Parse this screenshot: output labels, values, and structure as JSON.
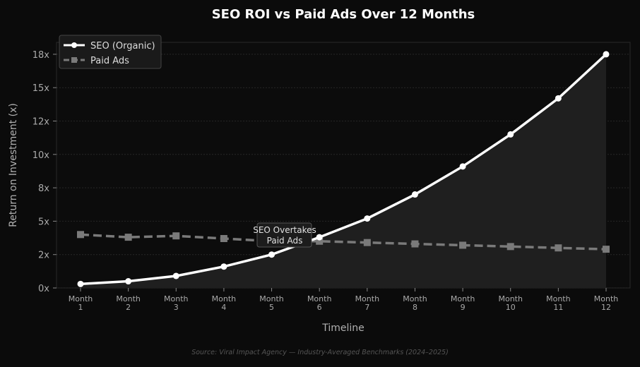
{
  "chart_data": {
    "type": "line",
    "title": "SEO ROI vs Paid Ads Over 12 Months",
    "xlabel": "Timeline",
    "ylabel": "Return on Investment (x)",
    "categories": [
      "Month\n1",
      "Month\n2",
      "Month\n3",
      "Month\n4",
      "Month\n5",
      "Month\n6",
      "Month\n7",
      "Month\n8",
      "Month\n9",
      "Month\n10",
      "Month\n11",
      "Month\n12"
    ],
    "ylim": [
      0,
      18.5
    ],
    "yticks": [
      0,
      2.5,
      5,
      7.5,
      10,
      12.5,
      15,
      17.5
    ],
    "ytick_labels": [
      "0x",
      "2x",
      "5x",
      "8x",
      "10x",
      "12x",
      "15x",
      "18x"
    ],
    "grid": true,
    "legend": "top-left",
    "series": [
      {
        "name": "SEO (Organic)",
        "color": "#ffffff",
        "marker": "circle",
        "style": "solid",
        "fill": true,
        "values": [
          0.3,
          0.5,
          0.9,
          1.6,
          2.5,
          3.8,
          5.2,
          7.0,
          9.1,
          11.5,
          14.2,
          17.5
        ]
      },
      {
        "name": "Paid Ads",
        "color": "#7a7a7a",
        "marker": "square",
        "style": "dashed",
        "values": [
          4.0,
          3.8,
          3.9,
          3.7,
          3.5,
          3.5,
          3.4,
          3.3,
          3.2,
          3.1,
          3.0,
          2.9
        ]
      }
    ],
    "annotation": {
      "text": [
        "SEO Overtakes",
        "Paid Ads"
      ],
      "month_index": 5
    },
    "source": "Source: Viral Impact Agency — Industry-Averaged Benchmarks (2024–2025)"
  }
}
